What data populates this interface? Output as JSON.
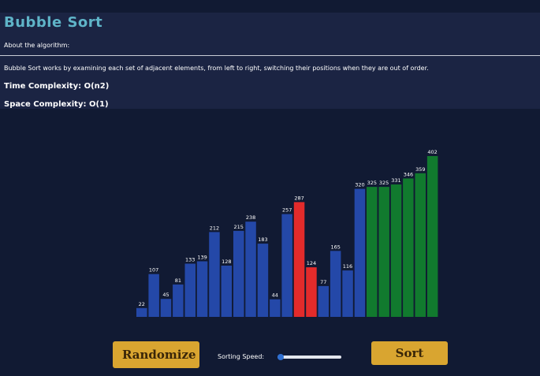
{
  "page": {
    "title": "Bubble Sort",
    "about_label": "About the algorithm:",
    "description": "Bubble Sort works by examining each set of adjacent elements, from left to right, switching their positions when they are out of order.",
    "time_complexity": "Time Complexity: O(n2)",
    "space_complexity": "Space Complexity: O(1)"
  },
  "colors": {
    "unsorted": "#2448a8",
    "comparing": "#e32b2b",
    "sorted": "#117a2e",
    "title": "#5fb4c8",
    "button": "#d9a530"
  },
  "chart_data": {
    "type": "bar",
    "values": [
      22,
      107,
      45,
      81,
      133,
      139,
      212,
      128,
      215,
      238,
      183,
      44,
      257,
      287,
      124,
      77,
      165,
      116,
      320,
      325,
      325,
      331,
      346,
      359,
      402
    ],
    "states": [
      "unsorted",
      "unsorted",
      "unsorted",
      "unsorted",
      "unsorted",
      "unsorted",
      "unsorted",
      "unsorted",
      "unsorted",
      "unsorted",
      "unsorted",
      "unsorted",
      "unsorted",
      "comparing",
      "comparing",
      "unsorted",
      "unsorted",
      "unsorted",
      "unsorted",
      "sorted",
      "sorted",
      "sorted",
      "sorted",
      "sorted",
      "sorted"
    ],
    "ylim": [
      0,
      402
    ]
  },
  "controls": {
    "randomize_label": "Randomize",
    "sort_label": "Sort",
    "speed_label": "Sorting Speed:",
    "speed_value": 0.05
  }
}
